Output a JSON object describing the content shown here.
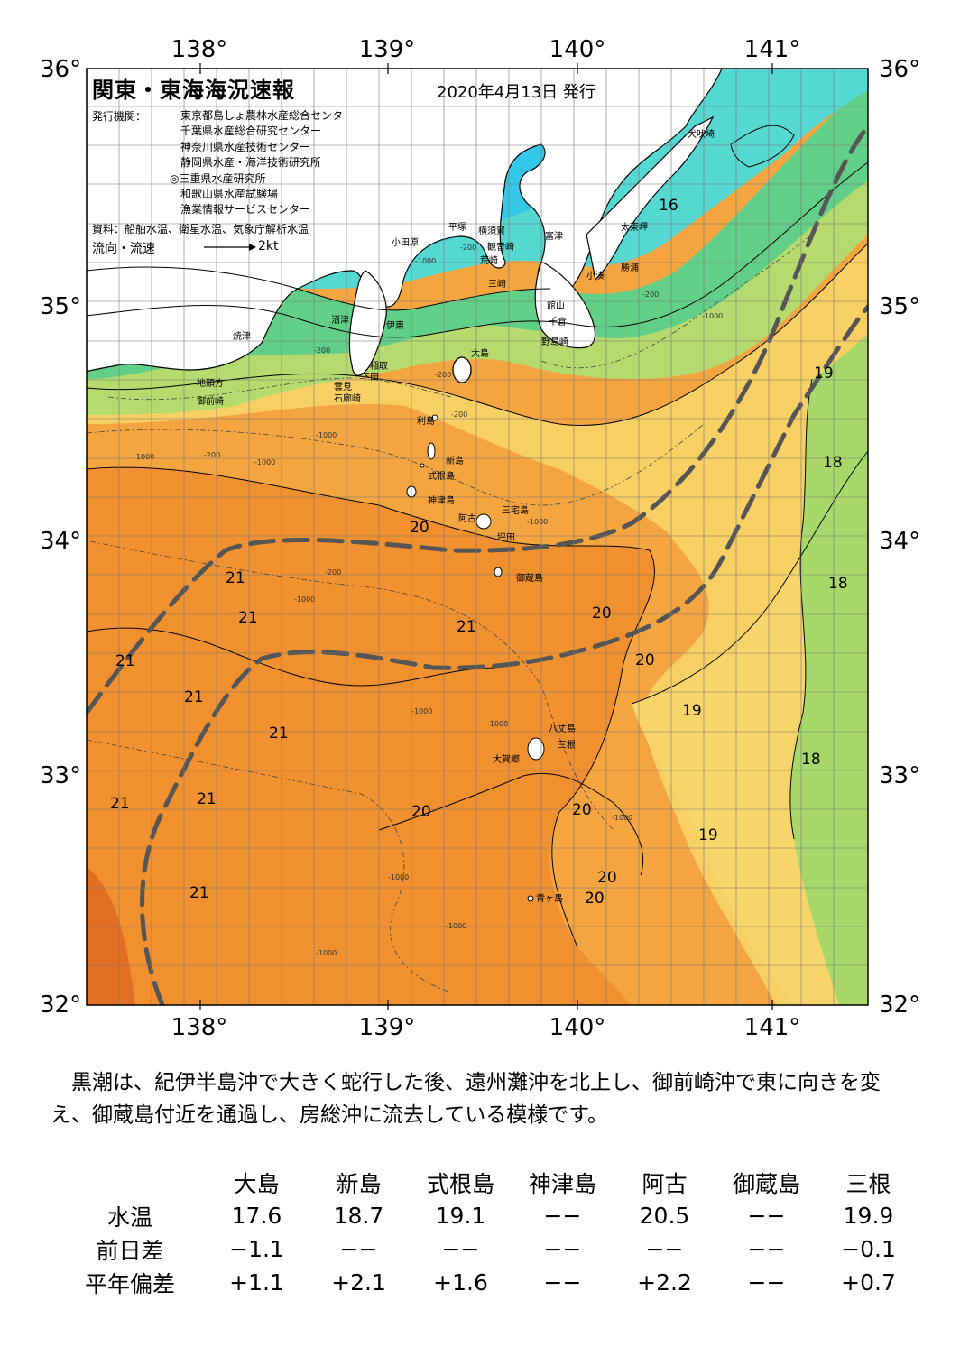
{
  "header": {
    "title": "関東・東海海況速報",
    "date": "2020年4月13日 発行",
    "publishers_label": "発行機関：",
    "publishers": [
      "東京都島しょ農林水産総合センター",
      "千葉県水産総合研究センター",
      "神奈川県水産技術センター",
      "静岡県水産・海洋技術研究所",
      "◎三重県水産研究所",
      "和歌山県水産試験場",
      "漁業情報サービスセンター"
    ],
    "source": "資料：船舶水温、衛星水温、気象庁解析水温",
    "flow_label": "流向・流速",
    "flow_unit": "2kt"
  },
  "axes": {
    "lon_top": [
      "138°",
      "139°",
      "140°",
      "141°"
    ],
    "lon_bottom": [
      "138°",
      "139°",
      "140°",
      "141°"
    ],
    "lat_left": [
      "36°",
      "35°",
      "34°",
      "33°",
      "32°"
    ],
    "lat_right": [
      "36°",
      "35°",
      "34°",
      "33°",
      "32°"
    ]
  },
  "places": [
    "犬吠埼",
    "太東岬",
    "勝浦",
    "小湊",
    "富津",
    "横須賀",
    "観音崎",
    "平塚",
    "小田原",
    "荒崎",
    "三崎",
    "館山",
    "千倉",
    "野島崎",
    "大島",
    "沼津",
    "伊東",
    "焼津",
    "稲取",
    "下田",
    "雲見",
    "石廊崎",
    "地頭方",
    "御前崎",
    "利島",
    "新島",
    "式根島",
    "神津島",
    "三宅島",
    "阿古",
    "坪田",
    "御蔵島",
    "八丈島",
    "三根",
    "大賀郷",
    "青ヶ島"
  ],
  "temperature_labels": [
    "16",
    "19",
    "18",
    "18",
    "20",
    "21",
    "21",
    "21",
    "21",
    "21",
    "20",
    "20",
    "19",
    "21",
    "18",
    "20",
    "21",
    "20",
    "19",
    "21",
    "20",
    "20",
    "21"
  ],
  "depth_labels": [
    "-1000",
    "-200",
    "-1000",
    "-200",
    "-1000",
    "-200",
    "-200",
    "-1000",
    "-200",
    "-1000",
    "-200",
    "-1000",
    "-1000",
    "-200",
    "-1000",
    "-1000",
    "-1000",
    "-1000",
    "-1000",
    "-1000"
  ],
  "description": "黒潮は、紀伊半島沖で大きく蛇行した後、遠州灘沖を北上し、御前崎沖で東に向きを変え、御蔵島付近を通過し、房総沖に流去している模様です。",
  "observations": {
    "stations": [
      "大島",
      "新島",
      "式根島",
      "神津島",
      "阿古",
      "御蔵島",
      "三根"
    ],
    "rows": [
      {
        "label": "水温",
        "values": [
          "17.6",
          "18.7",
          "19.1",
          "−−",
          "20.5",
          "−−",
          "19.9"
        ]
      },
      {
        "label": "前日差",
        "values": [
          "−1.1",
          "−−",
          "−−",
          "−−",
          "−−",
          "−−",
          "−0.1"
        ]
      },
      {
        "label": "平年偏差",
        "values": [
          "+1.1",
          "+2.1",
          "+1.6",
          "−−",
          "+2.2",
          "−−",
          "+0.7"
        ]
      }
    ]
  },
  "colors": {
    "land": "#ffffff",
    "cold_16": "#55d7d2",
    "t17": "#62cf88",
    "t18": "#8fd36b",
    "t19": "#f5dd72",
    "t20": "#f4b54e",
    "t21": "#f1902e",
    "t22": "#e36f22",
    "kuroshio_axis": "#555555"
  }
}
